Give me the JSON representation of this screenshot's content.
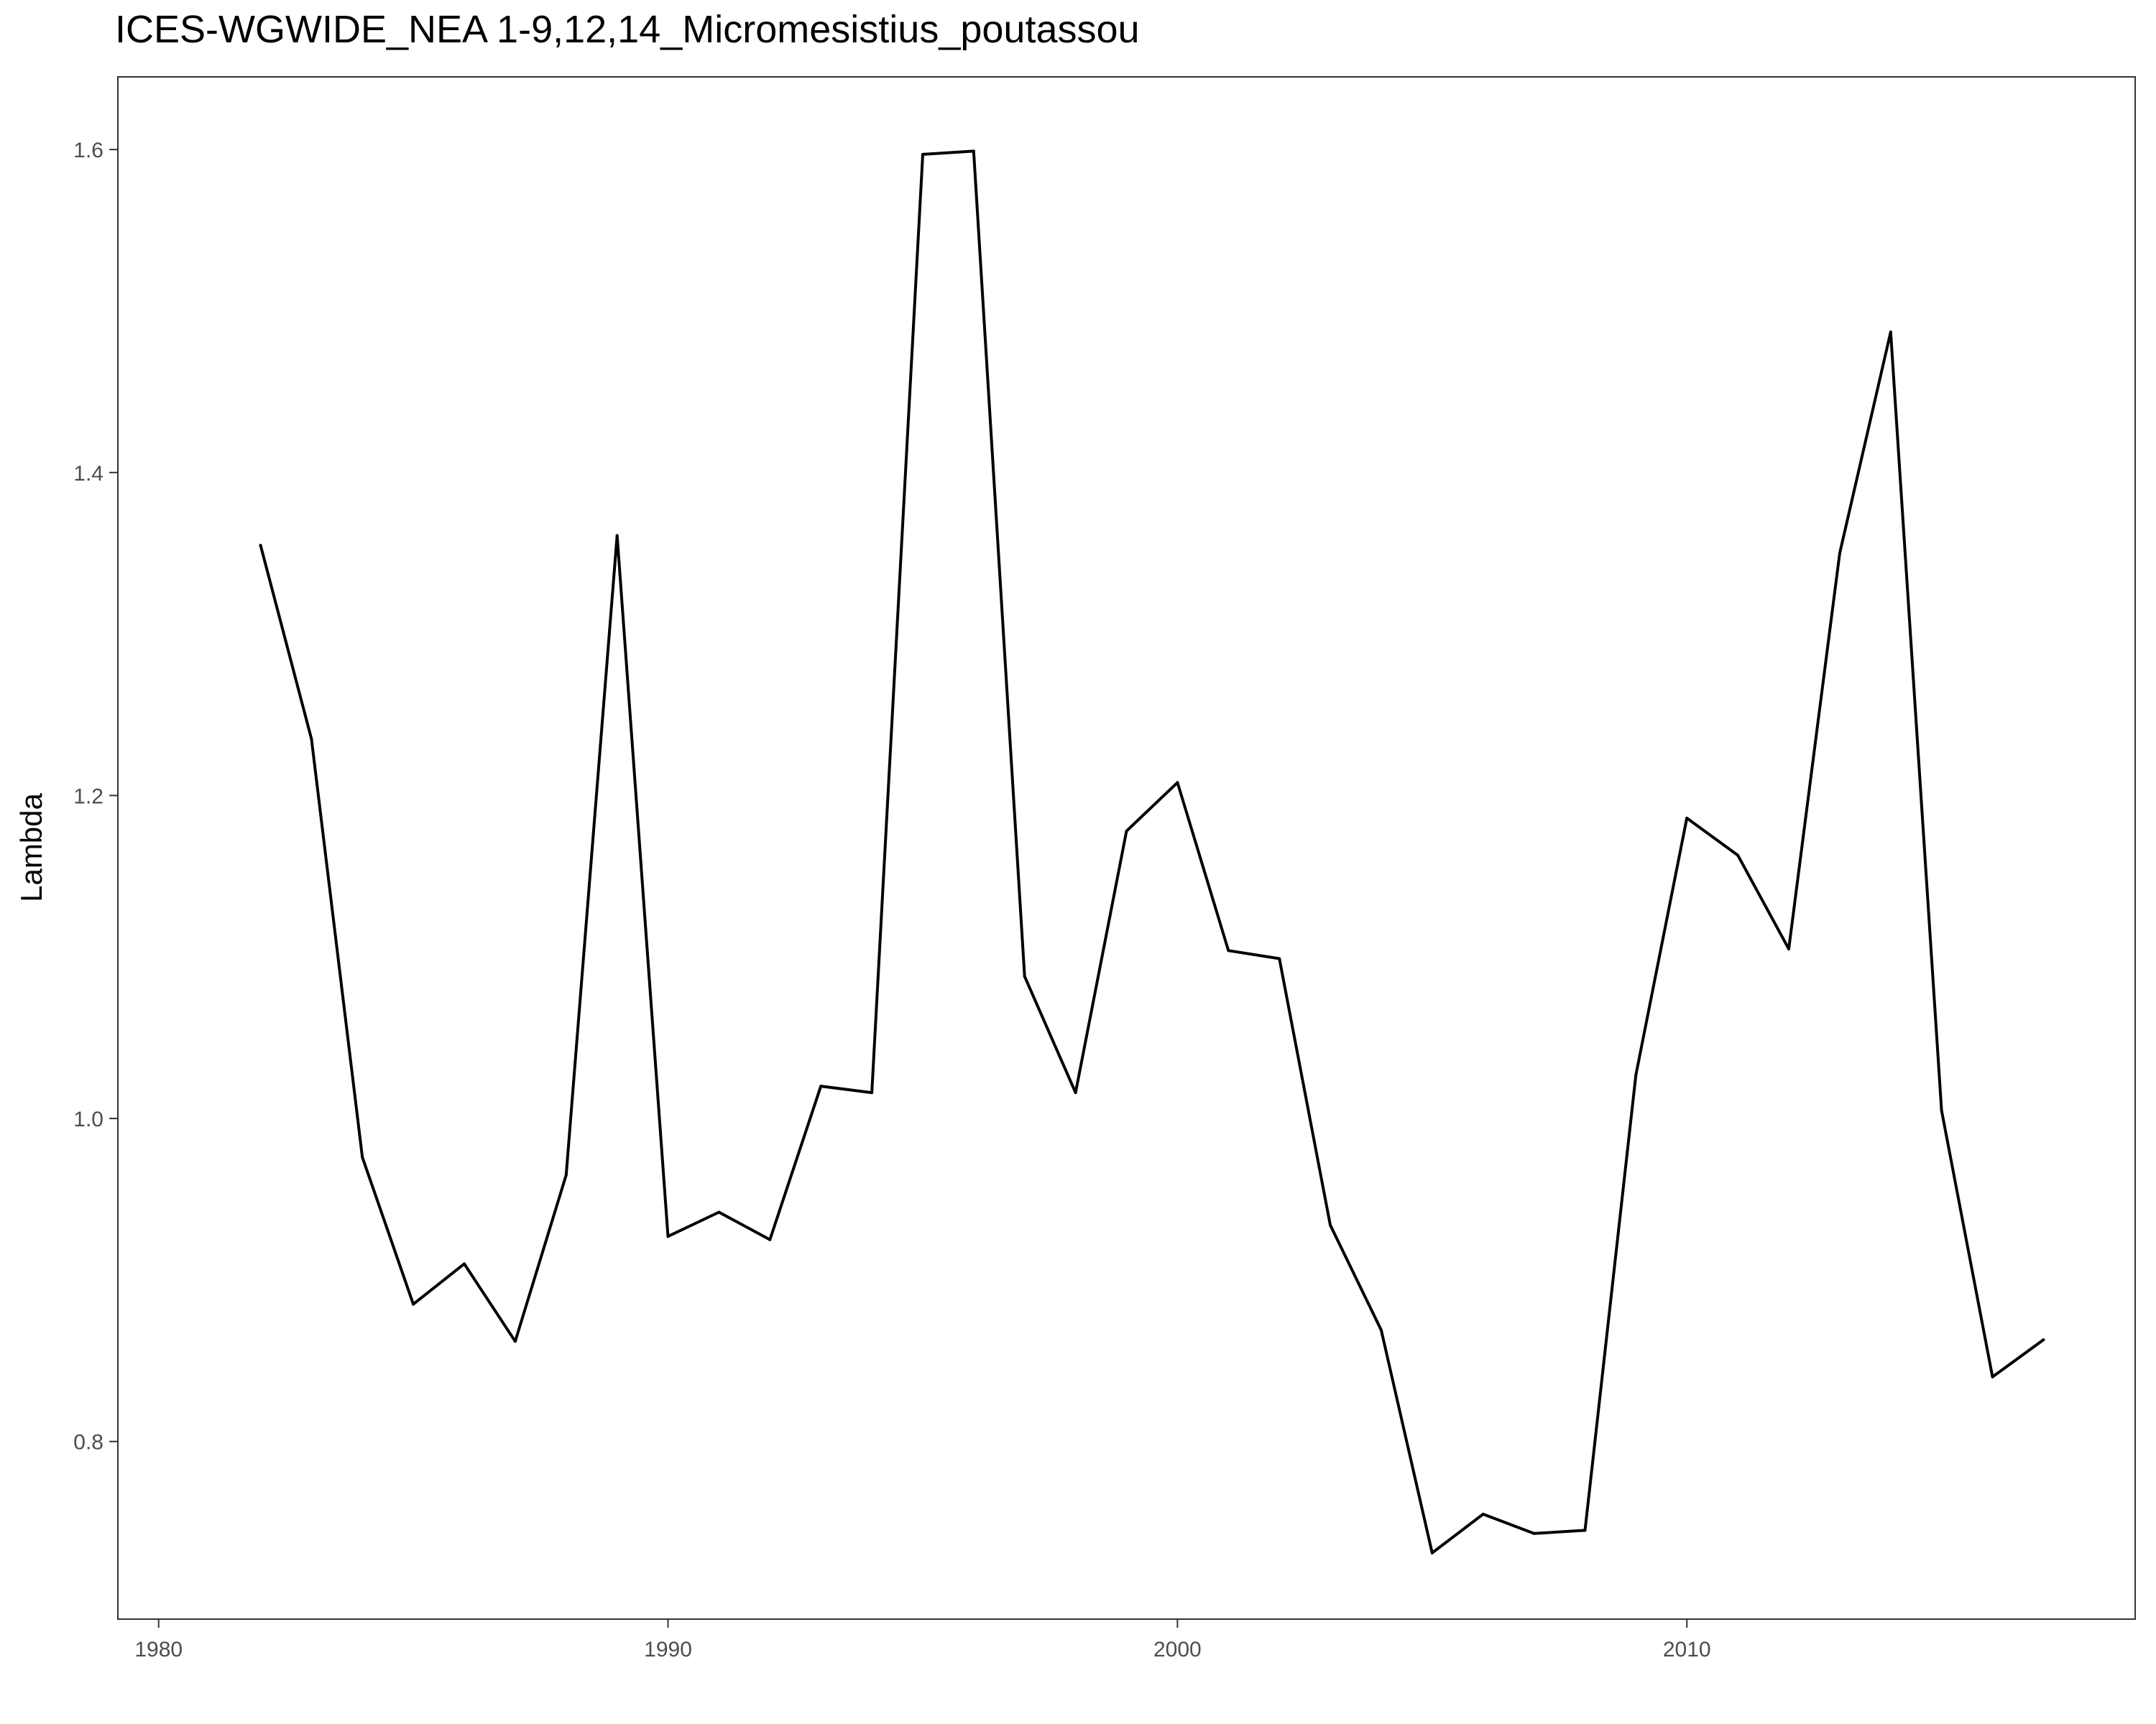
{
  "chart_data": {
    "type": "line",
    "title": "ICES-WGWIDE_NEA 1-9,12,14_Micromesistius_poutassou",
    "xlabel": "",
    "ylabel": "Lambda",
    "xlim": [
      1979.2,
      2018.8
    ],
    "ylim": [
      0.69,
      1.645
    ],
    "xticks": [
      1980,
      1990,
      2000,
      2010
    ],
    "yticks": [
      0.8,
      1.0,
      1.2,
      1.4,
      1.6
    ],
    "ytick_labels": [
      "0.8",
      "1.0",
      "1.2",
      "1.4",
      "1.6"
    ],
    "grid": false,
    "legend": "none",
    "line_color": "#000000",
    "series": [
      {
        "x": [
          1982,
          1983,
          1984,
          1985,
          1986,
          1987,
          1988,
          1989,
          1990,
          1991,
          1992,
          1993,
          1994,
          1995,
          1996,
          1997,
          1998,
          1999,
          2000,
          2001,
          2002,
          2003,
          2004,
          2005,
          2006,
          2007,
          2008,
          2009,
          2010,
          2011,
          2012,
          2013,
          2014,
          2015,
          2016,
          2017
        ],
        "values": [
          1.355,
          1.235,
          0.976,
          0.885,
          0.91,
          0.862,
          0.965,
          1.361,
          0.927,
          0.942,
          0.925,
          1.02,
          1.016,
          1.597,
          1.599,
          1.088,
          1.016,
          1.178,
          1.208,
          1.104,
          1.099,
          0.934,
          0.869,
          0.731,
          0.755,
          0.743,
          0.745,
          1.027,
          1.186,
          1.163,
          1.105,
          1.35,
          1.487,
          1.005,
          0.84,
          0.863
        ]
      }
    ]
  }
}
